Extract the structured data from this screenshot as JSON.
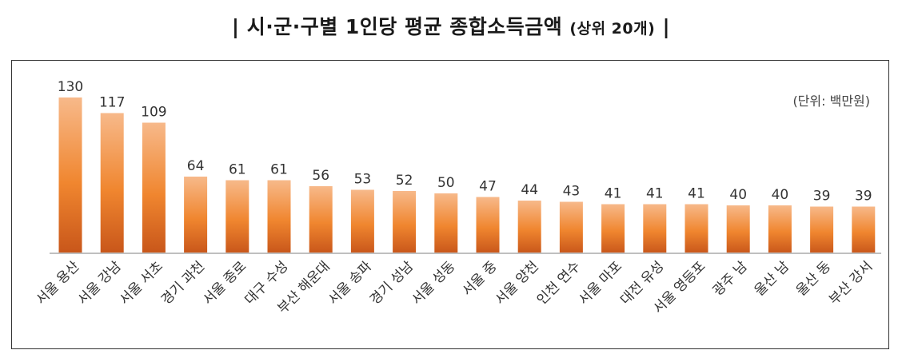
{
  "title": {
    "main": "| 시·군·구별 1인당 평균 종합소득금액 ",
    "paren": "(상위 20개)",
    "end": " |"
  },
  "unit_note": "(단위: 백만원)",
  "colors": {
    "bar_top": "#f7b98a",
    "bar_mid": "#f0862f",
    "bar_bottom": "#c8561a",
    "axis": "#bfbfbf",
    "frame": "#333333"
  },
  "chart_data": {
    "type": "bar",
    "categories": [
      "서울 용산",
      "서울 강남",
      "서울 서초",
      "경기 과천",
      "서울 종로",
      "대구 수성",
      "부산 해운대",
      "서울 송파",
      "경기 성남",
      "서울 성동",
      "서울 중",
      "서울 양천",
      "인천 연수",
      "서울 마포",
      "대전 유성",
      "서울 영등포",
      "광주 남",
      "울산 남",
      "울산 동",
      "부산 강서"
    ],
    "values": [
      130,
      117,
      109,
      64,
      61,
      61,
      56,
      53,
      52,
      50,
      47,
      44,
      43,
      41,
      41,
      41,
      40,
      40,
      39,
      39
    ],
    "ylim": [
      0,
      140
    ],
    "data_labels": true,
    "grid": false
  }
}
